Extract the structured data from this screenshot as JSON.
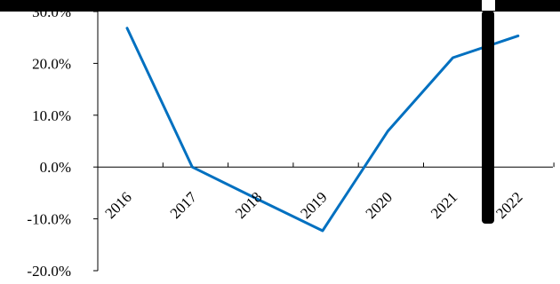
{
  "chart_data": {
    "type": "line",
    "categories": [
      "2016",
      "2017",
      "2018",
      "2019",
      "2020",
      "2021",
      "2022"
    ],
    "series": [
      {
        "x": [
          2016,
          2017,
          2018,
          2019,
          2020,
          2021,
          2022
        ],
        "values": [
          26.8,
          0.0,
          -6.2,
          -12.3,
          6.9,
          21.1,
          25.3
        ],
        "color": "#0070C0"
      }
    ],
    "y_ticks": [
      "30.0%",
      "20.0%",
      "10.0%",
      "0.0%",
      "-10.0%",
      "-20.0%"
    ],
    "ylim": [
      -20,
      30
    ],
    "grid": false,
    "legend": "none",
    "overlay_color": "#000000"
  }
}
